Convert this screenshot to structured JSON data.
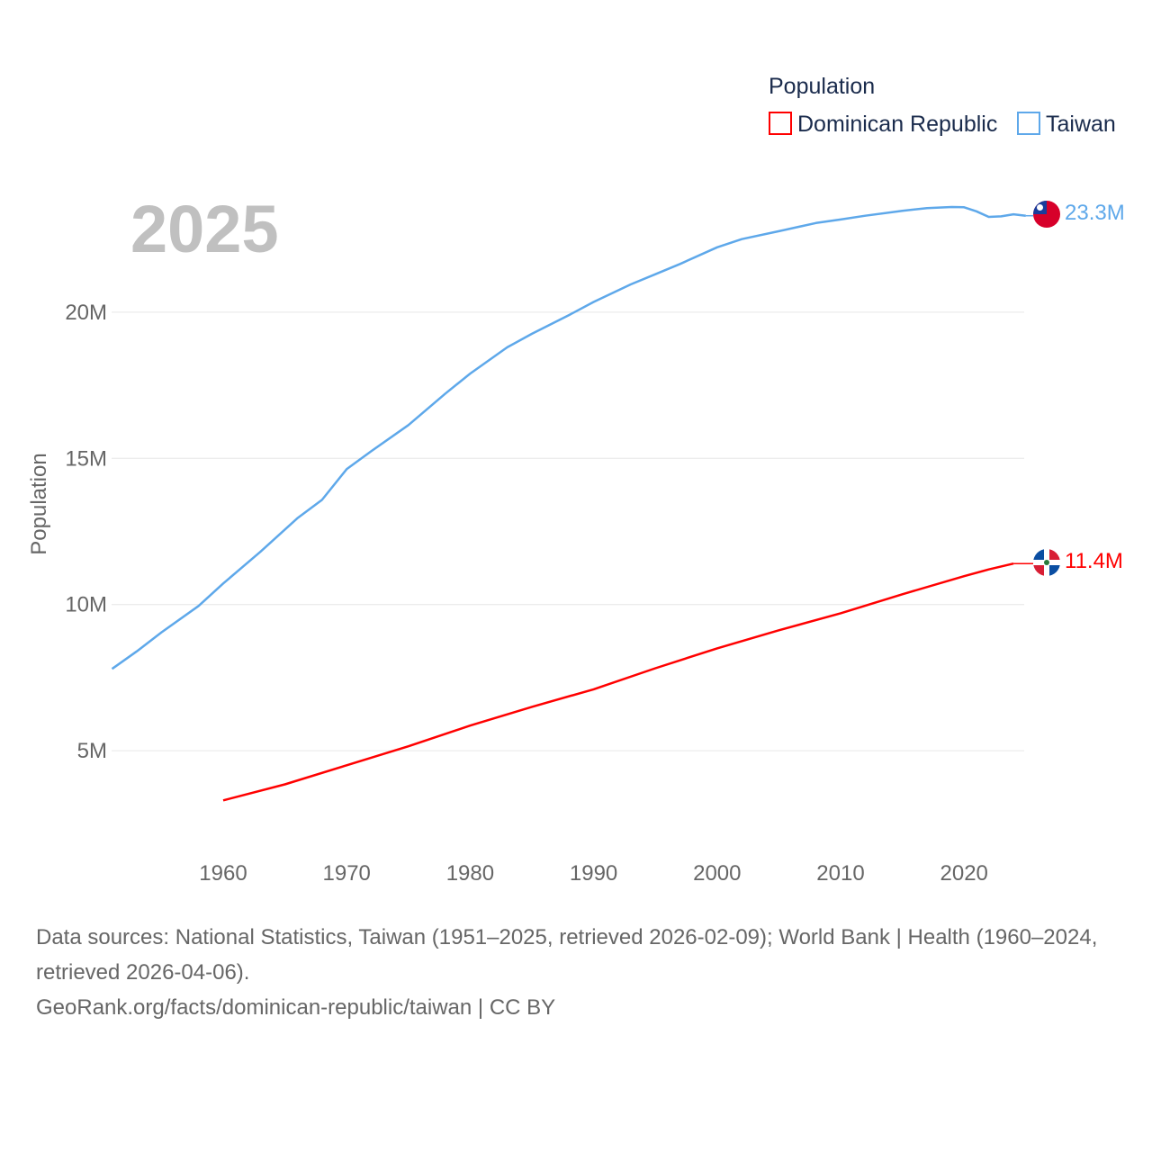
{
  "chart_data": {
    "type": "line",
    "year_label": "2025",
    "ylabel": "Population",
    "legend_title": "Population",
    "legend_placement": "top-right",
    "xlim": [
      1951,
      2025
    ],
    "ylim": [
      0,
      25000000
    ],
    "x_ticks": [
      1960,
      1970,
      1980,
      1990,
      2000,
      2010,
      2020
    ],
    "x_tick_labels": [
      "1960",
      "1970",
      "1980",
      "1990",
      "2000",
      "2010",
      "2020"
    ],
    "y_ticks": [
      5000000,
      10000000,
      15000000,
      20000000
    ],
    "y_tick_labels": [
      "5M",
      "10M",
      "15M",
      "20M"
    ],
    "grid": true,
    "series": [
      {
        "name": "Dominican Republic",
        "color": "#ff0000",
        "end_label": "11.4M",
        "flag": "dominican-republic-flag",
        "x": [
          1960,
          1965,
          1970,
          1975,
          1980,
          1985,
          1990,
          1995,
          2000,
          2005,
          2010,
          2015,
          2020,
          2022,
          2024
        ],
        "values": [
          3300000,
          3850000,
          4500000,
          5150000,
          5860000,
          6500000,
          7100000,
          7820000,
          8500000,
          9120000,
          9700000,
          10350000,
          10970000,
          11200000,
          11400000
        ]
      },
      {
        "name": "Taiwan",
        "color": "#5ea8ea",
        "end_label": "23.3M",
        "flag": "taiwan-flag",
        "x": [
          1951,
          1953,
          1955,
          1958,
          1960,
          1963,
          1966,
          1968,
          1970,
          1972,
          1975,
          1978,
          1980,
          1983,
          1985,
          1988,
          1990,
          1993,
          1995,
          1997,
          2000,
          2002,
          2005,
          2008,
          2010,
          2012,
          2015,
          2017,
          2019,
          2020,
          2021,
          2022,
          2023,
          2024,
          2025
        ],
        "values": [
          7800000,
          8400000,
          9050000,
          9950000,
          10720000,
          11800000,
          12950000,
          13580000,
          14630000,
          15250000,
          16140000,
          17220000,
          17900000,
          18800000,
          19260000,
          19900000,
          20350000,
          20950000,
          21300000,
          21650000,
          22220000,
          22500000,
          22770000,
          23050000,
          23170000,
          23300000,
          23470000,
          23560000,
          23600000,
          23590000,
          23450000,
          23260000,
          23280000,
          23350000,
          23300000
        ]
      }
    ]
  },
  "footer": {
    "sources": "Data sources: National Statistics, Taiwan (1951–2025, retrieved 2026-02-09); World Bank | Health (1960–2024, retrieved 2026-04-06).",
    "link": "GeoRank.org/facts/dominican-republic/taiwan | CC BY"
  }
}
